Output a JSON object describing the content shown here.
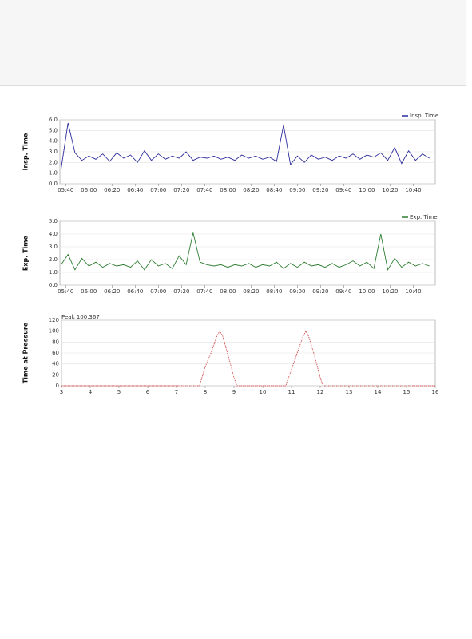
{
  "chart_data": [
    {
      "type": "line",
      "y_label": "Insp. Time",
      "x": [
        "05:36",
        "05:42",
        "05:48",
        "05:54",
        "06:00",
        "06:06",
        "06:12",
        "06:18",
        "06:24",
        "06:30",
        "06:36",
        "06:42",
        "06:48",
        "06:54",
        "07:00",
        "07:06",
        "07:12",
        "07:18",
        "07:24",
        "07:30",
        "07:36",
        "07:42",
        "07:48",
        "07:54",
        "08:00",
        "08:06",
        "08:12",
        "08:18",
        "08:24",
        "08:30",
        "08:36",
        "08:42",
        "08:48",
        "08:54",
        "09:00",
        "09:06",
        "09:12",
        "09:18",
        "09:24",
        "09:30",
        "09:36",
        "09:42",
        "09:48",
        "09:54",
        "10:00",
        "10:06",
        "10:12",
        "10:18",
        "10:24",
        "10:30",
        "10:36",
        "10:42",
        "10:48",
        "10:54"
      ],
      "series": [
        {
          "name": "Insp. Time",
          "color": "#2b2b9c",
          "values": [
            1.4,
            5.7,
            2.9,
            2.2,
            2.6,
            2.3,
            2.8,
            2.1,
            2.9,
            2.4,
            2.7,
            2.0,
            3.1,
            2.2,
            2.8,
            2.3,
            2.6,
            2.4,
            3.0,
            2.2,
            2.5,
            2.4,
            2.6,
            2.3,
            2.5,
            2.2,
            2.7,
            2.4,
            2.6,
            2.3,
            2.5,
            2.1,
            5.5,
            1.8,
            2.6,
            2.0,
            2.7,
            2.3,
            2.5,
            2.2,
            2.6,
            2.4,
            2.8,
            2.3,
            2.7,
            2.5,
            2.9,
            2.2,
            3.4,
            1.9,
            3.1,
            2.2,
            2.8,
            2.4
          ]
        }
      ],
      "xlim": [
        "05:35",
        "10:59"
      ],
      "xticks": [
        "05:40",
        "06:00",
        "06:20",
        "06:40",
        "07:00",
        "07:20",
        "07:40",
        "08:00",
        "08:20",
        "08:40",
        "09:00",
        "09:20",
        "09:40",
        "10:00",
        "10:20",
        "10:40"
      ],
      "ylim": [
        0,
        6
      ],
      "yticks": [
        {
          "value": 0,
          "label": "0.0"
        },
        {
          "value": 1,
          "label": "1.0"
        },
        {
          "value": 2,
          "label": "2.0"
        },
        {
          "value": 3,
          "label": "3.0"
        },
        {
          "value": 4,
          "label": "4.0"
        },
        {
          "value": 5,
          "label": "5.0"
        },
        {
          "value": 6,
          "label": "6.0"
        }
      ],
      "grid": true,
      "legend": "top-right"
    },
    {
      "type": "line",
      "y_label": "Exp. Time",
      "x": [
        "05:36",
        "05:42",
        "05:48",
        "05:54",
        "06:00",
        "06:06",
        "06:12",
        "06:18",
        "06:24",
        "06:30",
        "06:36",
        "06:42",
        "06:48",
        "06:54",
        "07:00",
        "07:06",
        "07:12",
        "07:18",
        "07:24",
        "07:30",
        "07:36",
        "07:42",
        "07:48",
        "07:54",
        "08:00",
        "08:06",
        "08:12",
        "08:18",
        "08:24",
        "08:30",
        "08:36",
        "08:42",
        "08:48",
        "08:54",
        "09:00",
        "09:06",
        "09:12",
        "09:18",
        "09:24",
        "09:30",
        "09:36",
        "09:42",
        "09:48",
        "09:54",
        "10:00",
        "10:06",
        "10:12",
        "10:18",
        "10:24",
        "10:30",
        "10:36",
        "10:42",
        "10:48",
        "10:54"
      ],
      "series": [
        {
          "name": "Exp. Time",
          "color": "#2f7d32",
          "values": [
            1.6,
            2.4,
            1.2,
            2.1,
            1.5,
            1.8,
            1.4,
            1.7,
            1.5,
            1.6,
            1.4,
            1.9,
            1.2,
            2.0,
            1.5,
            1.7,
            1.3,
            2.3,
            1.6,
            4.1,
            1.8,
            1.6,
            1.5,
            1.6,
            1.4,
            1.6,
            1.5,
            1.7,
            1.4,
            1.6,
            1.5,
            1.8,
            1.3,
            1.7,
            1.4,
            1.8,
            1.5,
            1.6,
            1.4,
            1.7,
            1.4,
            1.6,
            1.9,
            1.5,
            1.8,
            1.3,
            4.0,
            1.2,
            2.1,
            1.4,
            1.8,
            1.5,
            1.7,
            1.5
          ]
        }
      ],
      "xlim": [
        "05:35",
        "10:59"
      ],
      "xticks": [
        "05:40",
        "06:00",
        "06:20",
        "06:40",
        "07:00",
        "07:20",
        "07:40",
        "08:00",
        "08:20",
        "08:40",
        "09:00",
        "09:20",
        "09:40",
        "10:00",
        "10:20",
        "10:40"
      ],
      "ylim": [
        0,
        5
      ],
      "yticks": [
        {
          "value": 0,
          "label": "0.0"
        },
        {
          "value": 1,
          "label": "1.0"
        },
        {
          "value": 2,
          "label": "2.0"
        },
        {
          "value": 3,
          "label": "3.0"
        },
        {
          "value": 4,
          "label": "4.0"
        },
        {
          "value": 5,
          "label": "5.0"
        }
      ],
      "grid": true,
      "legend": "top-right"
    },
    {
      "type": "line",
      "y_label": "Time at Pressure",
      "annotation": "Peak 100.367",
      "x": [
        3,
        7.8,
        8.0,
        8.2,
        8.4,
        8.5,
        8.6,
        8.8,
        9.0,
        9.1,
        10.8,
        11.0,
        11.2,
        11.4,
        11.5,
        11.6,
        11.8,
        12.0,
        12.1,
        16
      ],
      "series": [
        {
          "color": "#d05050",
          "values": [
            0,
            0,
            35,
            60,
            90,
            100,
            92,
            55,
            15,
            0,
            0,
            30,
            60,
            90,
            100,
            90,
            55,
            15,
            0,
            0
          ]
        }
      ],
      "xlim": [
        3,
        16
      ],
      "xticks": [
        3,
        4,
        5,
        6,
        7,
        8,
        9,
        10,
        11,
        12,
        13,
        14,
        15,
        16
      ],
      "ylim": [
        0,
        120
      ],
      "yticks": [
        0,
        20,
        40,
        60,
        80,
        100,
        120
      ],
      "grid": true
    }
  ]
}
